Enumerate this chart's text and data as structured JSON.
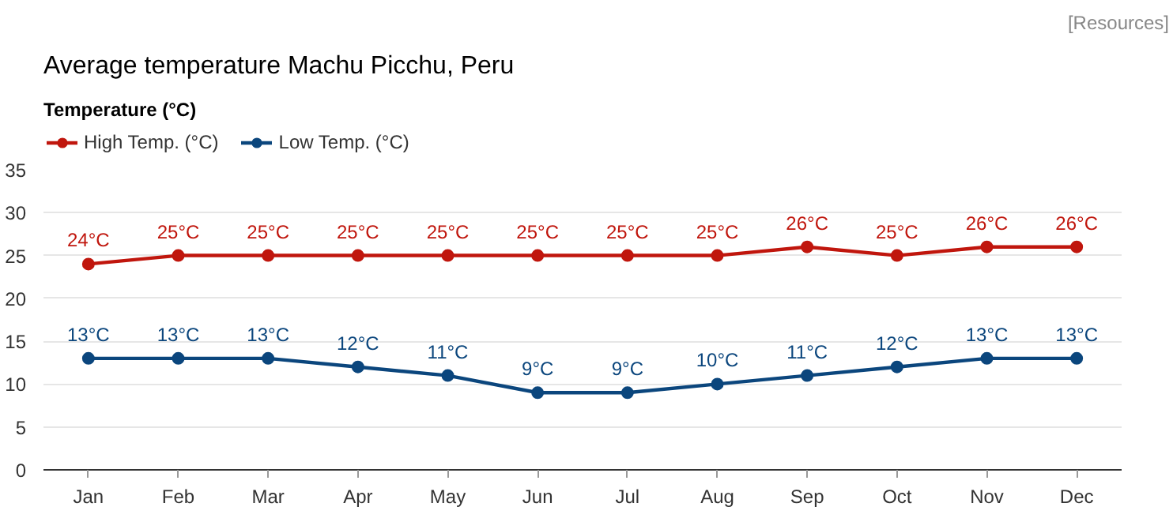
{
  "chart_data": {
    "type": "line",
    "title": "Average temperature Machu Picchu, Peru",
    "ylabel": "Temperature (°C)",
    "annotations": [
      "[Resources]"
    ],
    "categories": [
      "Jan",
      "Feb",
      "Mar",
      "Apr",
      "May",
      "Jun",
      "Jul",
      "Aug",
      "Sep",
      "Oct",
      "Nov",
      "Dec"
    ],
    "series": [
      {
        "name": "High Temp. (°C)",
        "color": "#c0160d",
        "values": [
          24,
          25,
          25,
          25,
          25,
          25,
          25,
          25,
          26,
          25,
          26,
          26
        ],
        "value_labels": [
          "24°C",
          "25°C",
          "25°C",
          "25°C",
          "25°C",
          "25°C",
          "25°C",
          "25°C",
          "26°C",
          "25°C",
          "26°C",
          "26°C"
        ]
      },
      {
        "name": "Low Temp. (°C)",
        "color": "#0b467d",
        "values": [
          13,
          13,
          13,
          12,
          11,
          9,
          9,
          10,
          11,
          12,
          13,
          13
        ],
        "value_labels": [
          "13°C",
          "13°C",
          "13°C",
          "12°C",
          "11°C",
          "9°C",
          "9°C",
          "10°C",
          "11°C",
          "12°C",
          "13°C",
          "13°C"
        ]
      }
    ],
    "ylim": [
      0,
      35
    ],
    "yticks": [
      0,
      5,
      10,
      15,
      20,
      25,
      30,
      35
    ],
    "grid": "y",
    "legend": "top left",
    "marker": "circle",
    "line_style": "solid"
  }
}
